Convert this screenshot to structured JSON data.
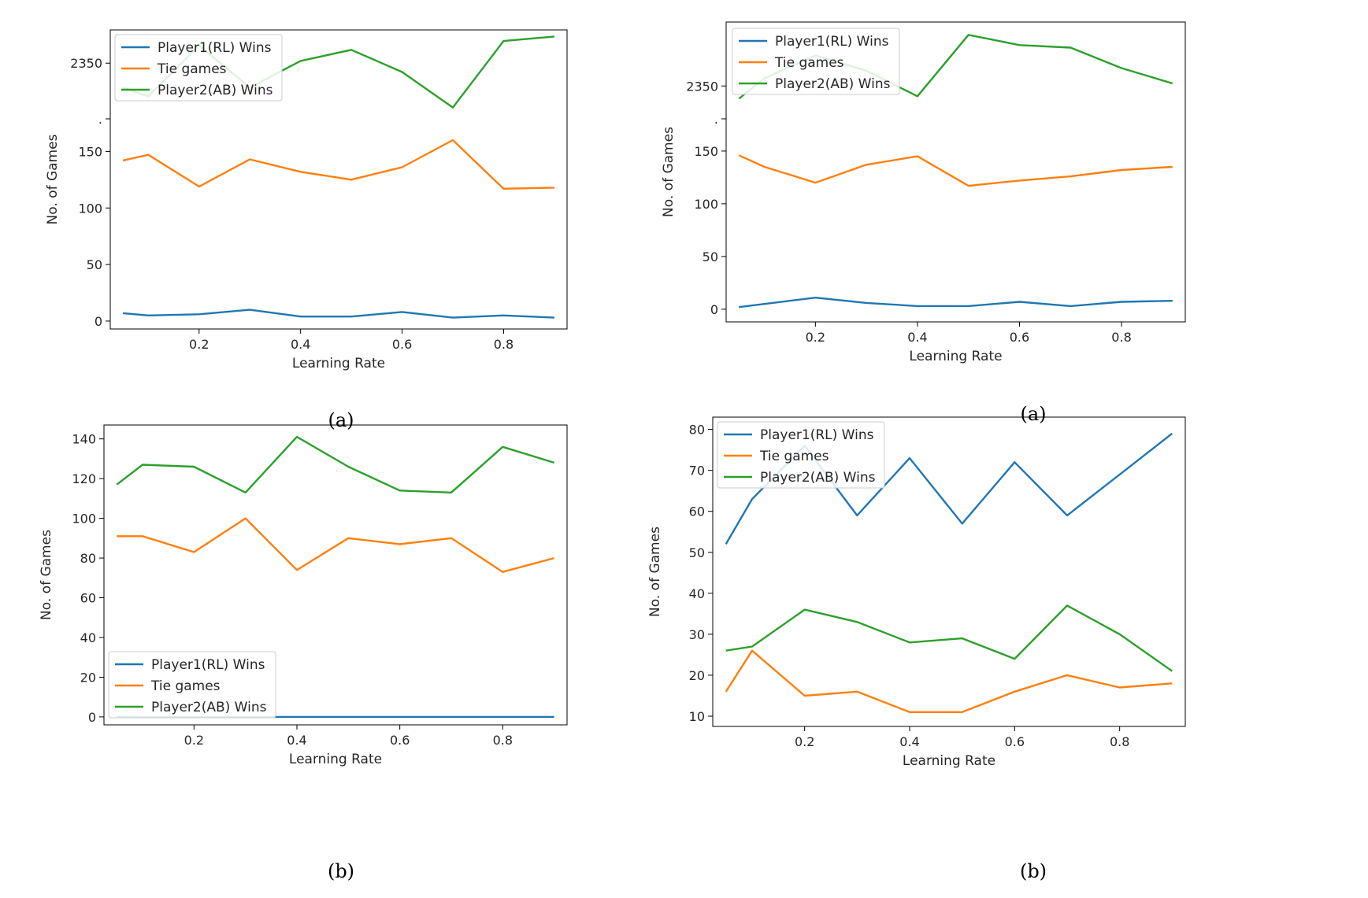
{
  "colors": {
    "Player1(RL) Wins": "#1f77b4",
    "Tie games": "#ff7f0e",
    "Player2(AB) Wins": "#2ca02c"
  },
  "chart_data": [
    {
      "type": "line",
      "caption": "(a)",
      "xlabel": "Learning Rate",
      "ylabel": "No. of Games",
      "x": [
        0.05,
        0.1,
        0.2,
        0.3,
        0.4,
        0.5,
        0.6,
        0.7,
        0.8,
        0.9
      ],
      "xticks": [
        "0.2",
        "0.4",
        "0.6",
        "0.8"
      ],
      "yticks": [
        "0",
        "50",
        "100",
        "150",
        "",
        "2350"
      ],
      "legend_position": "top-left",
      "series": [
        {
          "name": "Player1(RL) Wins",
          "values": [
            7,
            5,
            6,
            10,
            4,
            4,
            8,
            3,
            5,
            3
          ]
        },
        {
          "name": "Tie games",
          "values": [
            142,
            147,
            119,
            143,
            132,
            125,
            136,
            160,
            117,
            118
          ]
        },
        {
          "name": "Player2(AB) Wins",
          "values": [
            2339,
            2335,
            2358,
            2339,
            2351,
            2356,
            2346,
            2330,
            2360,
            2362
          ]
        }
      ]
    },
    {
      "type": "line",
      "caption": "(a)",
      "xlabel": "Learning Rate",
      "ylabel": "No. of Games",
      "x": [
        0.05,
        0.1,
        0.2,
        0.3,
        0.4,
        0.5,
        0.6,
        0.7,
        0.8,
        0.9
      ],
      "xticks": [
        "0.2",
        "0.4",
        "0.6",
        "0.8"
      ],
      "yticks": [
        "0",
        "50",
        "100",
        "150",
        "",
        "2350"
      ],
      "legend_position": "top-left",
      "series": [
        {
          "name": "Player1(RL) Wins",
          "values": [
            2,
            5,
            11,
            6,
            3,
            3,
            7,
            3,
            7,
            8
          ]
        },
        {
          "name": "Tie games",
          "values": [
            146,
            135,
            120,
            137,
            145,
            117,
            122,
            126,
            132,
            135
          ]
        },
        {
          "name": "Player2(AB) Wins",
          "values": [
            2345,
            2353,
            2362,
            2356,
            2346,
            2370,
            2366,
            2365,
            2357,
            2351
          ]
        }
      ]
    },
    {
      "type": "line",
      "caption": "(b)",
      "xlabel": "Learning Rate",
      "ylabel": "No. of Games",
      "x": [
        0.05,
        0.1,
        0.2,
        0.3,
        0.4,
        0.5,
        0.6,
        0.7,
        0.8,
        0.9
      ],
      "xticks": [
        "0.2",
        "0.4",
        "0.6",
        "0.8"
      ],
      "yticks": [
        "0",
        "20",
        "40",
        "60",
        "80",
        "100",
        "120",
        "140"
      ],
      "ylim": [
        -4,
        147
      ],
      "legend_position": "bottom-left",
      "series": [
        {
          "name": "Player1(RL) Wins",
          "values": [
            0,
            0,
            0,
            0,
            0,
            0,
            0,
            0,
            0,
            0
          ]
        },
        {
          "name": "Tie games",
          "values": [
            91,
            91,
            83,
            100,
            74,
            90,
            87,
            90,
            73,
            80
          ]
        },
        {
          "name": "Player2(AB) Wins",
          "values": [
            117,
            127,
            126,
            113,
            141,
            126,
            114,
            113,
            136,
            128
          ]
        }
      ]
    },
    {
      "type": "line",
      "caption": "(b)",
      "xlabel": "Learning Rate",
      "ylabel": "No. of Games",
      "x": [
        0.05,
        0.1,
        0.2,
        0.3,
        0.4,
        0.5,
        0.6,
        0.7,
        0.8,
        0.9
      ],
      "xticks": [
        "0.2",
        "0.4",
        "0.6",
        "0.8"
      ],
      "yticks": [
        "10",
        "20",
        "30",
        "40",
        "50",
        "60",
        "70",
        "80"
      ],
      "ylim": [
        7.5,
        83
      ],
      "legend_position": "top-left",
      "series": [
        {
          "name": "Player1(RL) Wins",
          "values": [
            52,
            63,
            76,
            59,
            73,
            57,
            72,
            59,
            69,
            79
          ]
        },
        {
          "name": "Tie games",
          "values": [
            16,
            26,
            15,
            16,
            11,
            11,
            16,
            20,
            17,
            18
          ]
        },
        {
          "name": "Player2(AB) Wins",
          "values": [
            26,
            27,
            36,
            33,
            28,
            29,
            24,
            37,
            30,
            21
          ]
        }
      ]
    }
  ]
}
